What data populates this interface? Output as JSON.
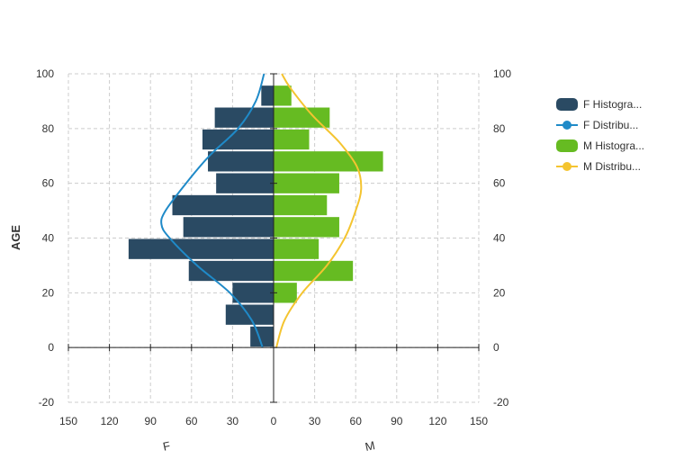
{
  "chart_data": {
    "type": "bar",
    "orientation": "horizontal-pyramid",
    "ylabel": "AGE",
    "ylim": [
      -20,
      100
    ],
    "yticks": [
      "-20",
      "0",
      "20",
      "40",
      "60",
      "80",
      "100"
    ],
    "xlim": [
      -150,
      150
    ],
    "xticks": [
      "150",
      "120",
      "90",
      "60",
      "30",
      "0",
      "30",
      "60",
      "90",
      "120",
      "150"
    ],
    "x_axis_labels": {
      "left": "F",
      "right": "M"
    },
    "age_bins": [
      0,
      8,
      16,
      24,
      32,
      40,
      48,
      56,
      64,
      72,
      80,
      88
    ],
    "bin_width": 8,
    "grid": true,
    "legend_position": "right",
    "series": [
      {
        "name": "F Histogra...",
        "type": "bar",
        "color": "#2a4a63",
        "values": [
          17,
          35,
          30,
          62,
          106,
          66,
          74,
          42,
          48,
          52,
          43,
          9
        ]
      },
      {
        "name": "F Distribu...",
        "type": "line",
        "color": "#1f8ac8",
        "points": [
          [
            0,
            -8
          ],
          [
            10,
            -16
          ],
          [
            20,
            -32
          ],
          [
            30,
            -56
          ],
          [
            40,
            -76
          ],
          [
            45,
            -82
          ],
          [
            50,
            -79
          ],
          [
            60,
            -64
          ],
          [
            70,
            -47
          ],
          [
            80,
            -26
          ],
          [
            90,
            -13
          ],
          [
            100,
            -7
          ]
        ]
      },
      {
        "name": "M Histogra...",
        "type": "bar",
        "color": "#66bb22",
        "values": [
          0,
          0,
          17,
          58,
          33,
          48,
          39,
          48,
          80,
          26,
          41,
          13
        ]
      },
      {
        "name": "M Distribu...",
        "type": "line",
        "color": "#f4c430",
        "points": [
          [
            0,
            2
          ],
          [
            10,
            8
          ],
          [
            20,
            21
          ],
          [
            30,
            39
          ],
          [
            40,
            52
          ],
          [
            50,
            60
          ],
          [
            58,
            64
          ],
          [
            66,
            61
          ],
          [
            75,
            48
          ],
          [
            85,
            28
          ],
          [
            95,
            12
          ],
          [
            100,
            6
          ]
        ]
      }
    ]
  }
}
